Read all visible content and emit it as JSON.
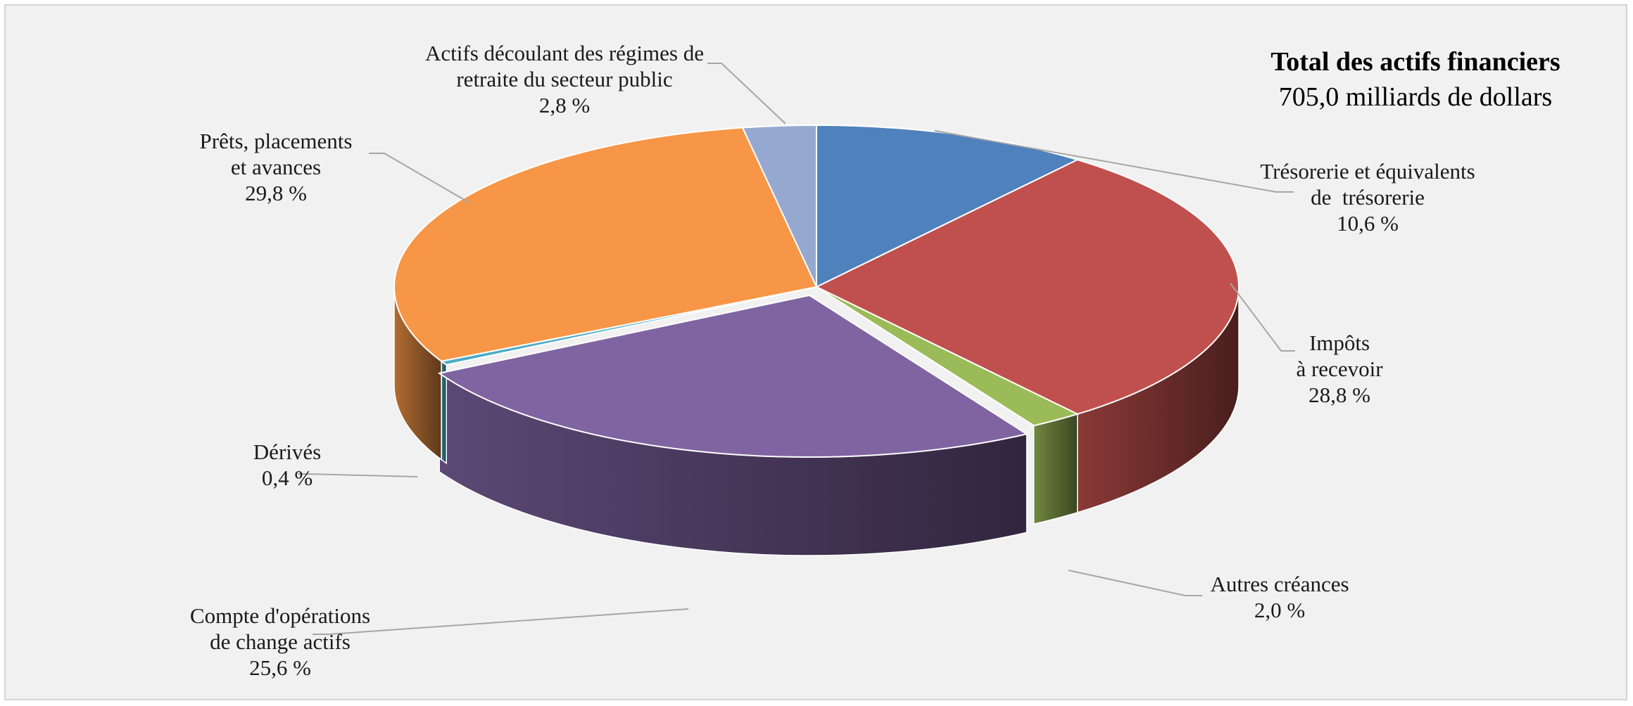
{
  "chart_data": {
    "type": "pie",
    "style": "3d-exploded-tilted",
    "title": "Total des actifs financiers",
    "subtitle": "705,0 milliards de dollars",
    "slices": [
      {
        "label": [
          "Trésorerie et équivalents",
          "de  trésorerie"
        ],
        "value_text": "10,6 %",
        "value": 10.6,
        "color": "#4f81bd"
      },
      {
        "label": [
          "Impôts",
          "à recevoir"
        ],
        "value_text": "28,8 %",
        "value": 28.8,
        "color": "#c0504d"
      },
      {
        "label": [
          "Autres créances"
        ],
        "value_text": "2,0 %",
        "value": 2.0,
        "color": "#9bbb59"
      },
      {
        "label": [
          "Compte d'opérations",
          "de change actifs"
        ],
        "value_text": "25,6 %",
        "value": 25.6,
        "color": "#8064a2"
      },
      {
        "label": [
          "Dérivés"
        ],
        "value_text": "0,4 %",
        "value": 0.4,
        "color": "#4bacc6"
      },
      {
        "label": [
          "Prêts, placements",
          "et avances"
        ],
        "value_text": "29,8 %",
        "value": 29.8,
        "color": "#f79646"
      },
      {
        "label": [
          "Actifs découlant des régimes de",
          "retraite du secteur public"
        ],
        "value_text": "2,8 %",
        "value": 2.8,
        "color": "#95a9d0"
      }
    ]
  }
}
